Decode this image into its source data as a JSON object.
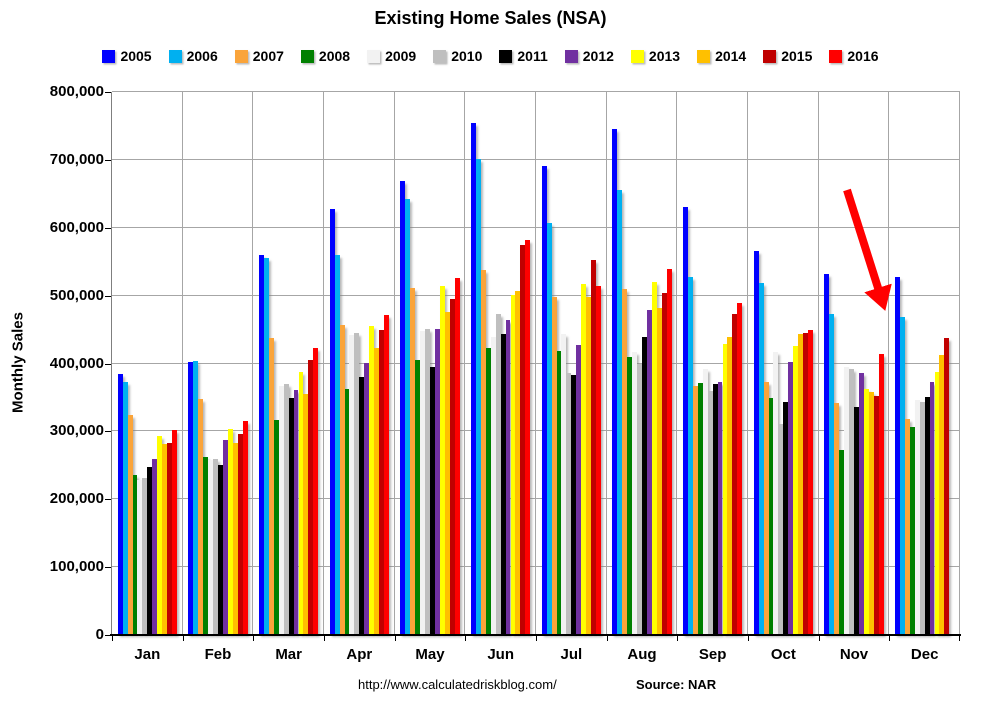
{
  "title": "Existing Home Sales (NSA)",
  "ylabel": "Monthly Sales",
  "footer": {
    "url": "http://www.calculatedriskblog.com/",
    "source": "Source: NAR"
  },
  "annotation": {
    "type": "arrow",
    "color": "#FF0000",
    "points_at": "Nov 2016 bar"
  },
  "chart_data": {
    "type": "bar",
    "title": "Existing Home Sales (NSA)",
    "xlabel": "",
    "ylabel": "Monthly Sales",
    "ylim": [
      0,
      800000
    ],
    "ytick_step": 100000,
    "ytick_labels": [
      "0",
      "100,000",
      "200,000",
      "300,000",
      "400,000",
      "500,000",
      "600,000",
      "700,000",
      "800,000"
    ],
    "grid": "horizontal gridlines + vertical category separators",
    "legend_position": "top",
    "categories": [
      "Jan",
      "Feb",
      "Mar",
      "Apr",
      "May",
      "Jun",
      "Jul",
      "Aug",
      "Sep",
      "Oct",
      "Nov",
      "Dec"
    ],
    "series": [
      {
        "name": "2005",
        "color": "#0000FF",
        "values": [
          383000,
          401000,
          558000,
          626000,
          668000,
          753000,
          690000,
          744000,
          629000,
          565000,
          530000,
          526000
        ]
      },
      {
        "name": "2006",
        "color": "#00B0F0",
        "values": [
          372000,
          402000,
          554000,
          559000,
          641000,
          700000,
          606000,
          654000,
          526000,
          517000,
          471000,
          467000
        ]
      },
      {
        "name": "2007",
        "color": "#FAA43A",
        "values": [
          323000,
          346000,
          436000,
          456000,
          510000,
          536000,
          497000,
          509000,
          365000,
          372000,
          340000,
          317000
        ]
      },
      {
        "name": "2008",
        "color": "#008000",
        "values": [
          234000,
          261000,
          315000,
          361000,
          403000,
          421000,
          417000,
          408000,
          370000,
          347000,
          271000,
          305000
        ]
      },
      {
        "name": "2009",
        "color": "#F2F2F2",
        "values": [
          227000,
          256000,
          365000,
          441000,
          446000,
          437000,
          442000,
          415000,
          390000,
          416000,
          394000,
          345000
        ]
      },
      {
        "name": "2010",
        "color": "#BFBFBF",
        "values": [
          230000,
          258000,
          368000,
          443000,
          449000,
          472000,
          385000,
          398000,
          358000,
          310000,
          390000,
          342000
        ]
      },
      {
        "name": "2011",
        "color": "#000000",
        "values": [
          246000,
          249000,
          348000,
          378000,
          393000,
          442000,
          382000,
          437000,
          368000,
          342000,
          334000,
          349000
        ]
      },
      {
        "name": "2012",
        "color": "#7030A0",
        "values": [
          258000,
          286000,
          360000,
          400000,
          450000,
          463000,
          426000,
          477000,
          372000,
          401000,
          385000,
          372000
        ]
      },
      {
        "name": "2013",
        "color": "#FFFF00",
        "values": [
          291000,
          302000,
          386000,
          454000,
          512000,
          500000,
          516000,
          519000,
          428000,
          424000,
          361000,
          386000
        ]
      },
      {
        "name": "2014",
        "color": "#FFC000",
        "values": [
          280000,
          281000,
          354000,
          422000,
          475000,
          505000,
          496000,
          481000,
          437000,
          442000,
          356000,
          411000
        ]
      },
      {
        "name": "2015",
        "color": "#C00000",
        "values": [
          282000,
          295000,
          403000,
          448000,
          494000,
          573000,
          551000,
          503000,
          471000,
          444000,
          350000,
          436000
        ]
      },
      {
        "name": "2016",
        "color": "#FF0000",
        "values": [
          300000,
          314000,
          421000,
          470000,
          524000,
          580000,
          512000,
          538000,
          487000,
          448000,
          413000,
          null
        ]
      }
    ]
  }
}
